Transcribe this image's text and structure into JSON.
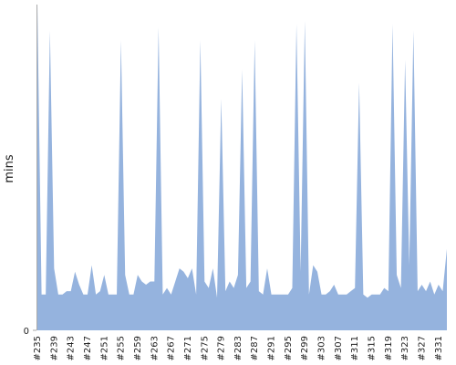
{
  "chart_data": {
    "type": "area",
    "ylabel": "mins",
    "color": "#95b3de",
    "ylim": [
      0,
      100
    ],
    "yticks": [
      0
    ],
    "categories": [
      "#235",
      null,
      null,
      null,
      "#239",
      null,
      null,
      null,
      "#243",
      null,
      null,
      null,
      "#247",
      null,
      null,
      null,
      "#251",
      null,
      null,
      null,
      "#255",
      null,
      null,
      null,
      "#259",
      null,
      null,
      null,
      "#263",
      null,
      null,
      null,
      "#267",
      null,
      null,
      null,
      "#271",
      null,
      null,
      null,
      "#275",
      null,
      null,
      null,
      "#279",
      null,
      null,
      null,
      "#283",
      null,
      null,
      null,
      "#287",
      null,
      null,
      null,
      "#291",
      null,
      null,
      null,
      "#295",
      null,
      null,
      null,
      "#299",
      null,
      null,
      null,
      "#303",
      null,
      null,
      null,
      "#307",
      null,
      null,
      null,
      "#311",
      null,
      null,
      null,
      "#315",
      null,
      null,
      null,
      "#319",
      null,
      null,
      null,
      "#323",
      null,
      null,
      null,
      "#327",
      null,
      null,
      null,
      "#331",
      null,
      null
    ],
    "values": [
      100,
      11,
      11,
      92,
      19,
      11,
      11,
      12,
      12,
      18,
      14,
      11,
      11,
      20,
      11,
      12,
      17,
      11,
      11,
      11,
      89,
      17,
      11,
      11,
      17,
      15,
      14,
      15,
      15,
      93,
      11,
      13,
      11,
      15,
      19,
      18,
      16,
      19,
      11,
      89,
      15,
      13,
      19,
      10,
      71,
      12,
      15,
      13,
      17,
      80,
      13,
      15,
      89,
      12,
      11,
      19,
      11,
      11,
      11,
      11,
      11,
      13,
      94,
      18,
      95,
      11,
      20,
      18,
      11,
      11,
      12,
      14,
      11,
      11,
      11,
      12,
      13,
      76,
      11,
      10,
      11,
      11,
      11,
      13,
      12,
      94,
      17,
      13,
      83,
      20,
      92,
      12,
      14,
      12,
      15,
      11,
      14,
      12,
      25
    ]
  }
}
